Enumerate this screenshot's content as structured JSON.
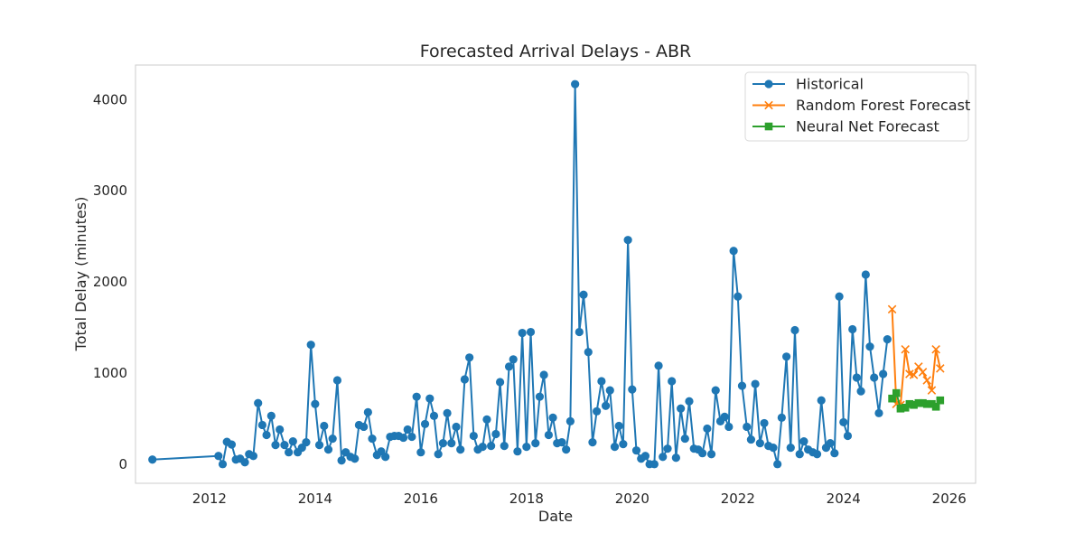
{
  "chart_data": {
    "type": "line",
    "title": "Forecasted Arrival Delays - ABR",
    "xlabel": "Date",
    "ylabel": "Total Delay (minutes)",
    "xlim": [
      2010.6,
      2026.5
    ],
    "ylim": [
      -210,
      4380
    ],
    "x_ticks": [
      2012,
      2014,
      2016,
      2018,
      2020,
      2022,
      2024,
      2026
    ],
    "y_ticks": [
      0,
      1000,
      2000,
      3000,
      4000
    ],
    "grid": false,
    "legend_position": "top-right",
    "series": [
      {
        "name": "Historical",
        "color": "#1f77b4",
        "marker": "circle",
        "points": [
          [
            2010.92,
            50
          ],
          [
            2012.17,
            90
          ],
          [
            2012.25,
            0
          ],
          [
            2012.33,
            245
          ],
          [
            2012.42,
            215
          ],
          [
            2012.5,
            50
          ],
          [
            2012.58,
            60
          ],
          [
            2012.67,
            20
          ],
          [
            2012.75,
            110
          ],
          [
            2012.83,
            90
          ],
          [
            2012.92,
            670
          ],
          [
            2013.0,
            430
          ],
          [
            2013.08,
            320
          ],
          [
            2013.17,
            530
          ],
          [
            2013.25,
            210
          ],
          [
            2013.33,
            380
          ],
          [
            2013.42,
            210
          ],
          [
            2013.5,
            130
          ],
          [
            2013.58,
            250
          ],
          [
            2013.67,
            130
          ],
          [
            2013.75,
            180
          ],
          [
            2013.83,
            240
          ],
          [
            2013.92,
            1310
          ],
          [
            2014.0,
            660
          ],
          [
            2014.08,
            210
          ],
          [
            2014.17,
            420
          ],
          [
            2014.25,
            160
          ],
          [
            2014.33,
            280
          ],
          [
            2014.42,
            920
          ],
          [
            2014.5,
            40
          ],
          [
            2014.58,
            130
          ],
          [
            2014.67,
            80
          ],
          [
            2014.75,
            60
          ],
          [
            2014.83,
            430
          ],
          [
            2014.92,
            410
          ],
          [
            2015.0,
            570
          ],
          [
            2015.08,
            280
          ],
          [
            2015.17,
            100
          ],
          [
            2015.25,
            140
          ],
          [
            2015.33,
            80
          ],
          [
            2015.42,
            300
          ],
          [
            2015.5,
            310
          ],
          [
            2015.58,
            310
          ],
          [
            2015.67,
            290
          ],
          [
            2015.75,
            380
          ],
          [
            2015.83,
            300
          ],
          [
            2015.92,
            740
          ],
          [
            2016.0,
            130
          ],
          [
            2016.08,
            440
          ],
          [
            2016.17,
            720
          ],
          [
            2016.25,
            530
          ],
          [
            2016.33,
            110
          ],
          [
            2016.42,
            230
          ],
          [
            2016.5,
            560
          ],
          [
            2016.58,
            230
          ],
          [
            2016.67,
            410
          ],
          [
            2016.75,
            160
          ],
          [
            2016.83,
            930
          ],
          [
            2016.92,
            1170
          ],
          [
            2017.0,
            310
          ],
          [
            2017.08,
            160
          ],
          [
            2017.17,
            190
          ],
          [
            2017.25,
            490
          ],
          [
            2017.33,
            200
          ],
          [
            2017.42,
            330
          ],
          [
            2017.5,
            900
          ],
          [
            2017.58,
            200
          ],
          [
            2017.67,
            1070
          ],
          [
            2017.75,
            1150
          ],
          [
            2017.83,
            140
          ],
          [
            2017.92,
            1440
          ],
          [
            2018.0,
            190
          ],
          [
            2018.08,
            1450
          ],
          [
            2018.17,
            230
          ],
          [
            2018.25,
            740
          ],
          [
            2018.33,
            980
          ],
          [
            2018.42,
            320
          ],
          [
            2018.5,
            510
          ],
          [
            2018.58,
            230
          ],
          [
            2018.67,
            240
          ],
          [
            2018.75,
            160
          ],
          [
            2018.83,
            470
          ],
          [
            2018.92,
            4170
          ],
          [
            2019.0,
            1450
          ],
          [
            2019.08,
            1860
          ],
          [
            2019.17,
            1230
          ],
          [
            2019.25,
            240
          ],
          [
            2019.33,
            580
          ],
          [
            2019.42,
            910
          ],
          [
            2019.5,
            640
          ],
          [
            2019.58,
            810
          ],
          [
            2019.67,
            190
          ],
          [
            2019.75,
            420
          ],
          [
            2019.83,
            220
          ],
          [
            2019.92,
            2460
          ],
          [
            2020.0,
            820
          ],
          [
            2020.08,
            150
          ],
          [
            2020.17,
            60
          ],
          [
            2020.25,
            90
          ],
          [
            2020.33,
            0
          ],
          [
            2020.42,
            0
          ],
          [
            2020.5,
            1080
          ],
          [
            2020.58,
            80
          ],
          [
            2020.67,
            170
          ],
          [
            2020.75,
            910
          ],
          [
            2020.83,
            70
          ],
          [
            2020.92,
            610
          ],
          [
            2021.0,
            280
          ],
          [
            2021.08,
            690
          ],
          [
            2021.17,
            170
          ],
          [
            2021.25,
            160
          ],
          [
            2021.33,
            120
          ],
          [
            2021.42,
            390
          ],
          [
            2021.5,
            110
          ],
          [
            2021.58,
            810
          ],
          [
            2021.67,
            470
          ],
          [
            2021.75,
            520
          ],
          [
            2021.83,
            410
          ],
          [
            2021.92,
            2340
          ],
          [
            2022.0,
            1840
          ],
          [
            2022.08,
            860
          ],
          [
            2022.17,
            410
          ],
          [
            2022.25,
            270
          ],
          [
            2022.33,
            880
          ],
          [
            2022.42,
            230
          ],
          [
            2022.5,
            450
          ],
          [
            2022.58,
            200
          ],
          [
            2022.67,
            180
          ],
          [
            2022.75,
            0
          ],
          [
            2022.83,
            510
          ],
          [
            2022.92,
            1180
          ],
          [
            2023.0,
            180
          ],
          [
            2023.08,
            1470
          ],
          [
            2023.17,
            110
          ],
          [
            2023.25,
            250
          ],
          [
            2023.33,
            160
          ],
          [
            2023.42,
            130
          ],
          [
            2023.5,
            110
          ],
          [
            2023.58,
            700
          ],
          [
            2023.67,
            180
          ],
          [
            2023.75,
            230
          ],
          [
            2023.83,
            120
          ],
          [
            2023.92,
            1840
          ],
          [
            2024.0,
            460
          ],
          [
            2024.08,
            310
          ],
          [
            2024.17,
            1480
          ],
          [
            2024.25,
            950
          ],
          [
            2024.33,
            800
          ],
          [
            2024.42,
            2080
          ],
          [
            2024.5,
            1290
          ],
          [
            2024.58,
            950
          ],
          [
            2024.67,
            560
          ],
          [
            2024.75,
            990
          ],
          [
            2024.83,
            1370
          ]
        ]
      },
      {
        "name": "Random Forest Forecast",
        "color": "#ff7f0e",
        "marker": "x",
        "points": [
          [
            2024.92,
            1700
          ],
          [
            2025.0,
            660
          ],
          [
            2025.08,
            650
          ],
          [
            2025.17,
            1260
          ],
          [
            2025.25,
            990
          ],
          [
            2025.33,
            980
          ],
          [
            2025.42,
            1070
          ],
          [
            2025.5,
            1010
          ],
          [
            2025.58,
            920
          ],
          [
            2025.67,
            810
          ],
          [
            2025.75,
            1260
          ],
          [
            2025.83,
            1050
          ]
        ]
      },
      {
        "name": "Neural Net Forecast",
        "color": "#2ca02c",
        "marker": "square",
        "points": [
          [
            2024.92,
            720
          ],
          [
            2025.0,
            780
          ],
          [
            2025.08,
            610
          ],
          [
            2025.17,
            620
          ],
          [
            2025.25,
            660
          ],
          [
            2025.33,
            650
          ],
          [
            2025.42,
            670
          ],
          [
            2025.5,
            670
          ],
          [
            2025.58,
            660
          ],
          [
            2025.67,
            660
          ],
          [
            2025.75,
            630
          ],
          [
            2025.83,
            700
          ]
        ]
      }
    ]
  }
}
